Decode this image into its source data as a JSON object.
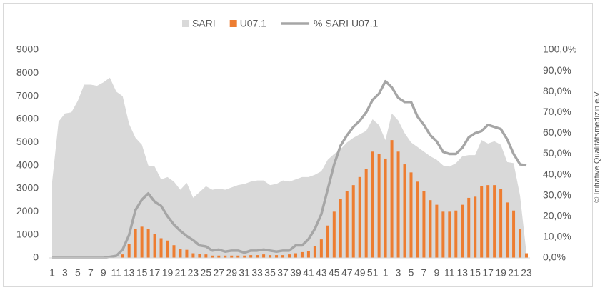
{
  "chart_data": {
    "type": "combo",
    "categories": [
      1,
      null,
      3,
      null,
      5,
      null,
      7,
      null,
      9,
      null,
      11,
      null,
      13,
      null,
      15,
      null,
      17,
      null,
      19,
      null,
      21,
      null,
      23,
      null,
      25,
      null,
      27,
      null,
      29,
      null,
      31,
      null,
      33,
      null,
      35,
      null,
      37,
      null,
      39,
      null,
      41,
      null,
      43,
      null,
      45,
      null,
      47,
      null,
      49,
      null,
      51,
      null,
      1,
      null,
      3,
      null,
      5,
      null,
      7,
      null,
      9,
      null,
      11,
      null,
      13,
      null,
      15,
      null,
      17,
      null,
      19,
      null,
      21,
      null,
      23
    ],
    "series": [
      {
        "name": "SARI",
        "type": "area",
        "color": "#d9d9d9",
        "values": [
          3300,
          5900,
          6250,
          6300,
          6800,
          7500,
          7500,
          7450,
          7600,
          7800,
          7200,
          7000,
          5800,
          5200,
          4900,
          4000,
          3950,
          3400,
          3500,
          3300,
          2950,
          3250,
          2600,
          2850,
          3100,
          2950,
          3000,
          2950,
          3050,
          3150,
          3200,
          3300,
          3350,
          3350,
          3150,
          3200,
          3350,
          3300,
          3400,
          3500,
          3500,
          3600,
          3750,
          4250,
          4500,
          4700,
          5000,
          5200,
          5350,
          5500,
          6000,
          5750,
          5100,
          6250,
          5950,
          5400,
          5000,
          4800,
          4600,
          4400,
          4250,
          4000,
          3950,
          4100,
          4400,
          4450,
          4450,
          5100,
          4950,
          5050,
          4900,
          4150,
          4100,
          2700,
          200
        ]
      },
      {
        "name": "U07.1",
        "type": "bar",
        "color": "#ed7d31",
        "values": [
          0,
          0,
          0,
          0,
          0,
          0,
          0,
          0,
          0,
          0,
          0,
          150,
          600,
          1250,
          1350,
          1250,
          1050,
          850,
          750,
          550,
          400,
          350,
          200,
          170,
          150,
          100,
          100,
          100,
          100,
          100,
          100,
          120,
          120,
          150,
          120,
          120,
          120,
          150,
          200,
          250,
          300,
          500,
          800,
          1400,
          2000,
          2550,
          2900,
          3150,
          3500,
          3850,
          4600,
          4500,
          4300,
          5100,
          4600,
          4050,
          3700,
          3300,
          2900,
          2500,
          2300,
          2000,
          2000,
          2050,
          2300,
          2600,
          2650,
          3100,
          3150,
          3150,
          3000,
          2400,
          2050,
          1250,
          200
        ]
      },
      {
        "name": "% SARI U07.1",
        "type": "line",
        "axis": "y2",
        "color": "#a6a6a6",
        "values": [
          0,
          0,
          0,
          0,
          0,
          0,
          0,
          0,
          0,
          0.5,
          1,
          4,
          11,
          23,
          28,
          31,
          27,
          25,
          20,
          16,
          13,
          10.5,
          8.5,
          6,
          5.5,
          3.5,
          4,
          3,
          3.5,
          3.5,
          2.5,
          3.5,
          3.5,
          4,
          3.5,
          3,
          3.5,
          3.5,
          6,
          6,
          9,
          14,
          21,
          33,
          45,
          54,
          59,
          63,
          66,
          70,
          76,
          79,
          85,
          82,
          77,
          75,
          75,
          68,
          64,
          59,
          56,
          51,
          50,
          50,
          53,
          58,
          60,
          61,
          64,
          63,
          62,
          57,
          50,
          45,
          44.5
        ]
      }
    ],
    "ylim": [
      0,
      9000
    ],
    "yticks": [
      0,
      1000,
      2000,
      3000,
      4000,
      5000,
      6000,
      7000,
      8000,
      9000
    ],
    "y2lim": [
      0,
      100
    ],
    "y2ticks": [
      {
        "value": 0,
        "label": "0,0%"
      },
      {
        "value": 10,
        "label": "10,0%"
      },
      {
        "value": 20,
        "label": "20,0%"
      },
      {
        "value": 30,
        "label": "30,0%"
      },
      {
        "value": 40,
        "label": "40,0%"
      },
      {
        "value": 50,
        "label": "50,0%"
      },
      {
        "value": 60,
        "label": "60,0%"
      },
      {
        "value": 70,
        "label": "70,0%"
      },
      {
        "value": 80,
        "label": "80,0%"
      },
      {
        "value": 90,
        "label": "90,0%"
      },
      {
        "value": 100,
        "label": "100,0%"
      }
    ],
    "legend": "top",
    "annotations": [
      "© Initiative Qualitätsmedizin e.V."
    ]
  }
}
